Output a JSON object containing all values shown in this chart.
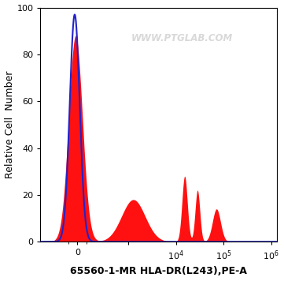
{
  "xlabel": "65560-1-MR HLA-DR(L243),PE-A",
  "ylabel": "Relative Cell  Number",
  "ylim": [
    0,
    100
  ],
  "yticks": [
    0,
    20,
    40,
    60,
    80,
    100
  ],
  "watermark": "WWW.PTGLAB.COM",
  "background_color": "#ffffff",
  "blue_line_color": "#2222cc",
  "red_fill_color": "#ff1111",
  "xlabel_fontsize": 9,
  "ylabel_fontsize": 9,
  "tick_fontsize": 8,
  "linthresh": 300,
  "linscale": 0.5
}
